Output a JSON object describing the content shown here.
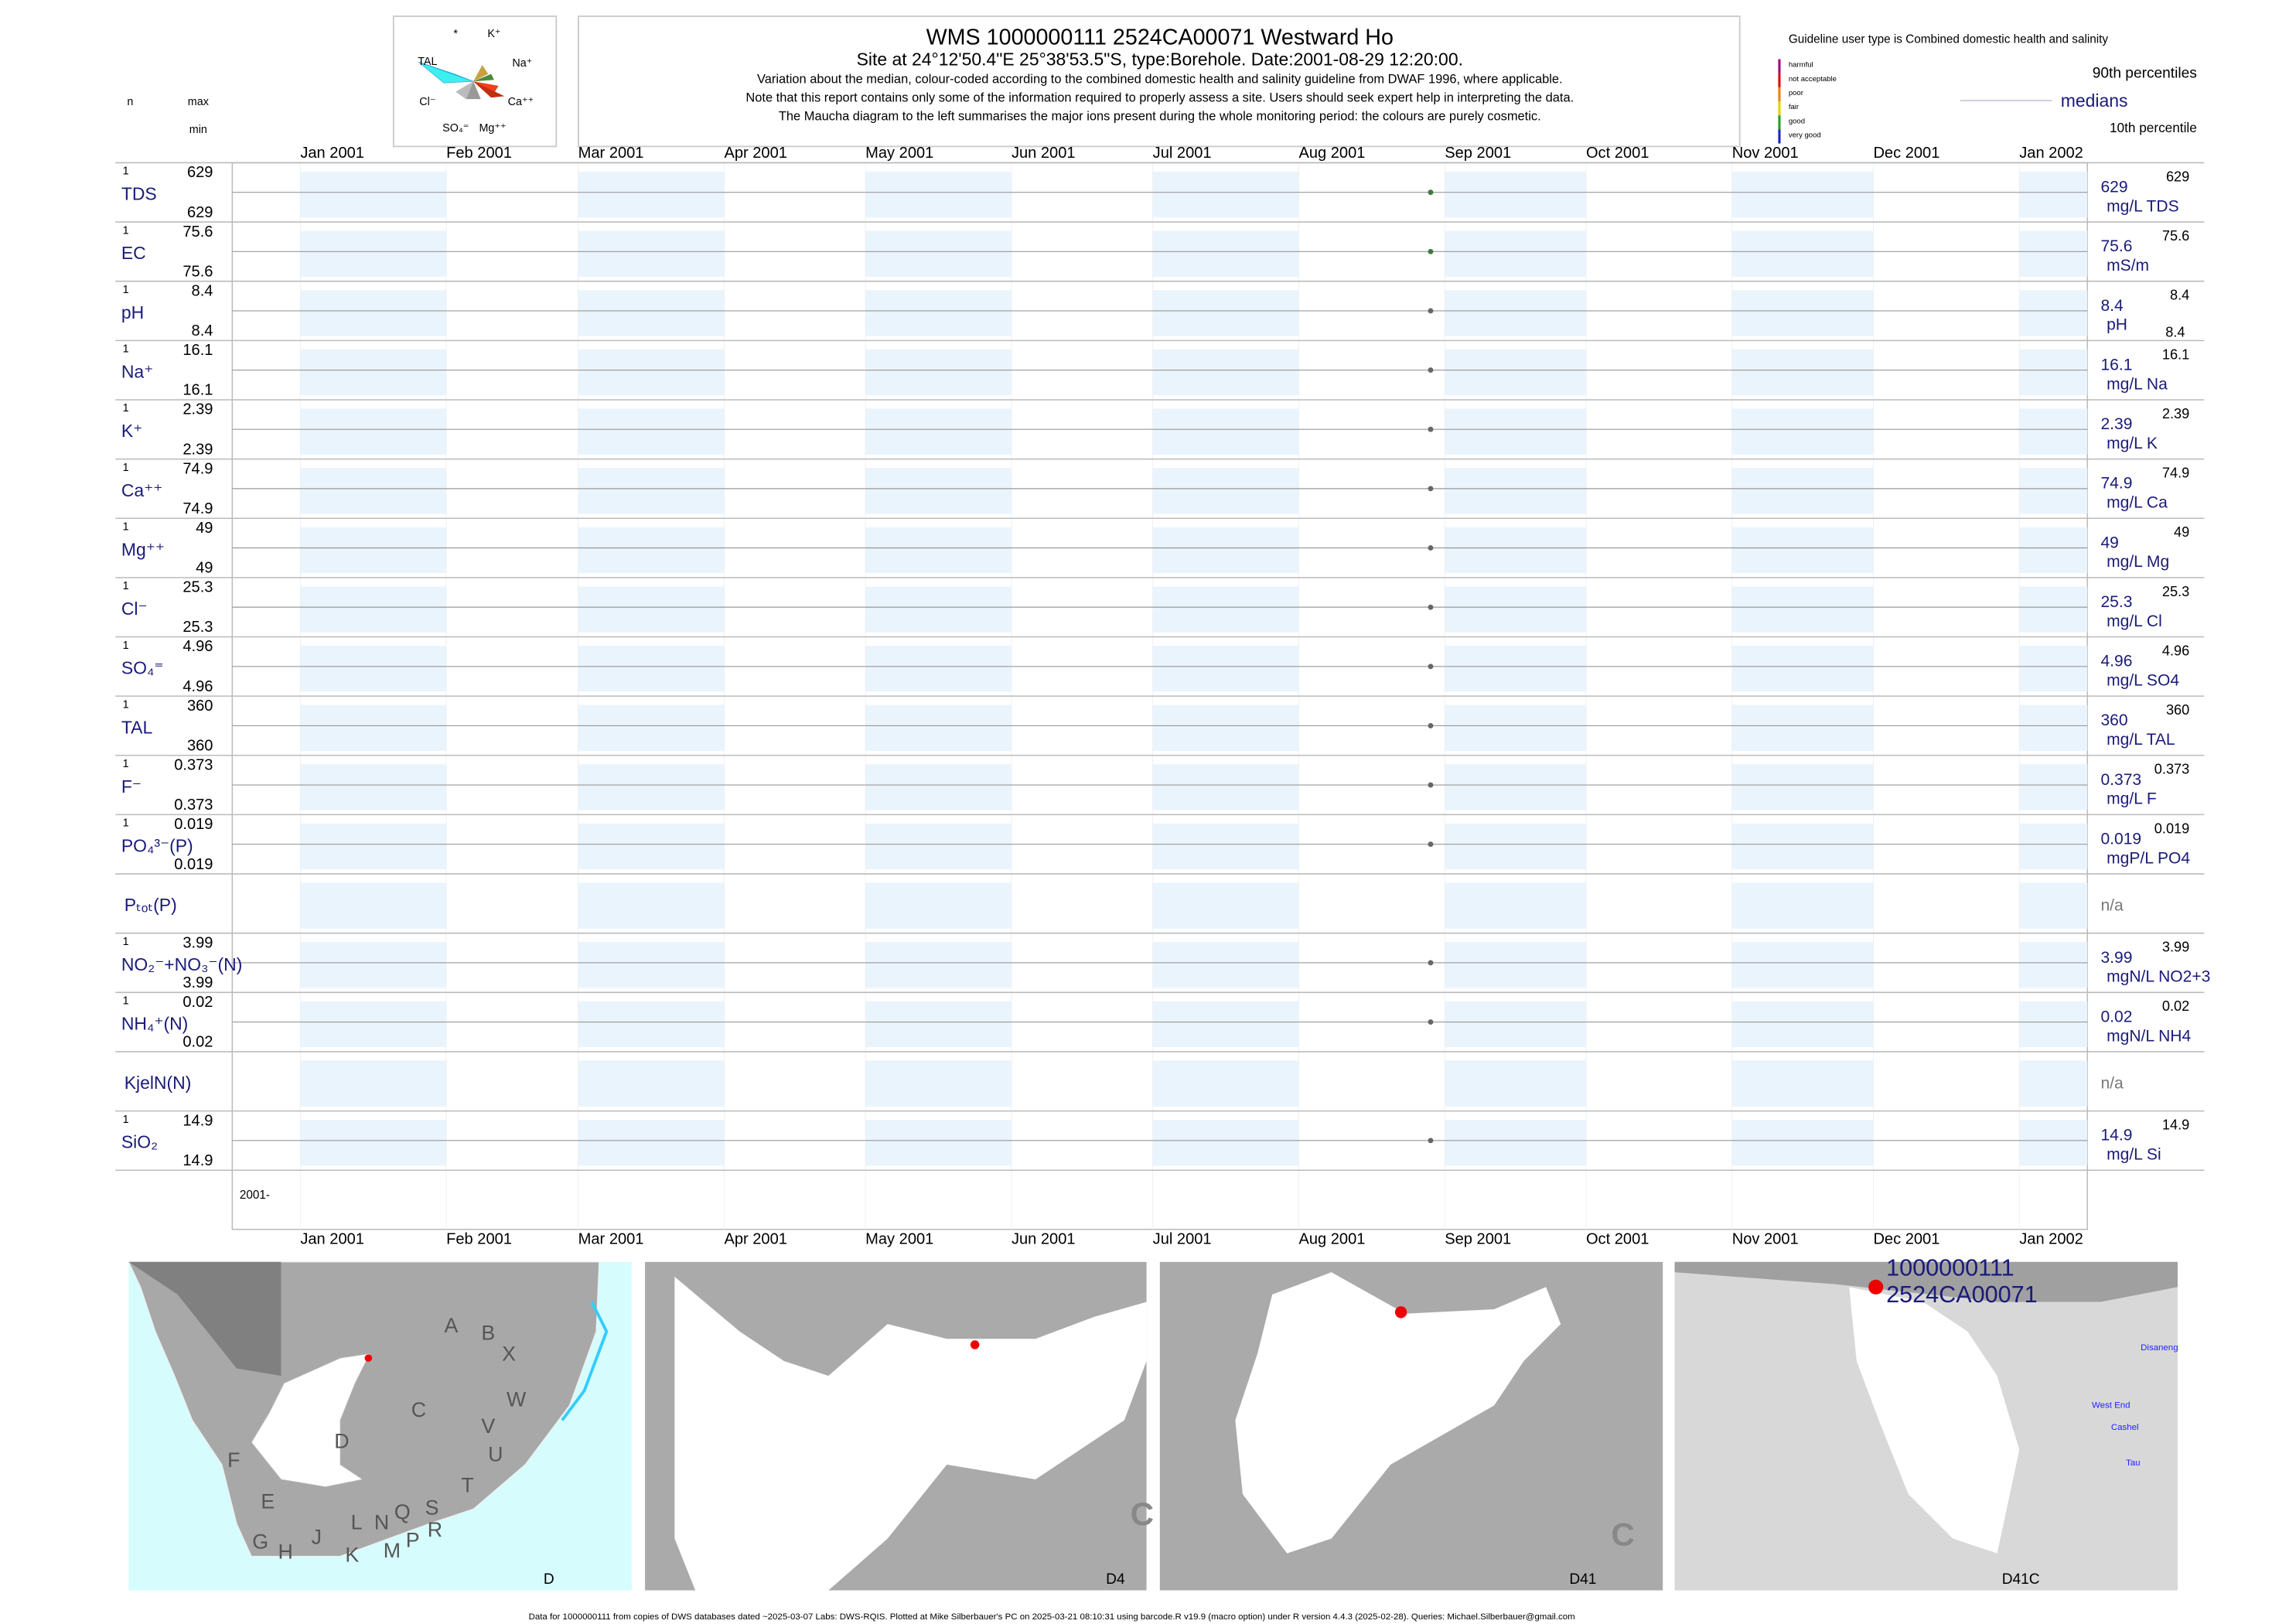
{
  "header": {
    "title": "WMS 1000000111 2524CA00071 Westward Ho",
    "subtitle": "Site at 24°12'50.4\"E 25°38'53.5\"S, type:Borehole. Date:2001-08-29 12:20:00.",
    "notes": [
      "Variation about the median,  colour-coded according to the combined domestic health and salinity guideline from DWAF 1996, where applicable.",
      "Note that this report contains only some of the information required to properly assess a site. Users should seek expert help in interpreting the data.",
      "The Maucha diagram to the left summarises the major ions present during the whole monitoring period: the colours are purely cosmetic."
    ]
  },
  "column_heads": {
    "n": "n",
    "max": "max",
    "min": "min"
  },
  "maucha": {
    "labels": [
      "*",
      "K⁺",
      "TAL",
      "Na⁺",
      "Cl⁻",
      "Ca⁺⁺",
      "SO₄⁼",
      "Mg⁺⁺"
    ]
  },
  "guideline": {
    "title": "Guideline user type is Combined domestic health and salinity",
    "classes": [
      {
        "name": "harmful",
        "color": "#a0007a"
      },
      {
        "name": "not acceptable",
        "color": "#e00000"
      },
      {
        "name": "poor",
        "color": "#f08000"
      },
      {
        "name": "fair",
        "color": "#e0d000"
      },
      {
        "name": "good",
        "color": "#20a020"
      },
      {
        "name": "very good",
        "color": "#2020c0"
      }
    ],
    "p90_label": "90th percentiles",
    "median_label": "medians",
    "p10_label": "10th percentile"
  },
  "months": [
    "Jan 2001",
    "Feb 2001",
    "Mar 2001",
    "Apr 2001",
    "May 2001",
    "Jun 2001",
    "Jul 2001",
    "Aug 2001",
    "Sep 2001",
    "Oct 2001",
    "Nov 2001",
    "Dec 2001",
    "Jan 2002"
  ],
  "year_label": "2001-",
  "rows": [
    {
      "label": "TDS",
      "n": 1,
      "max": 629,
      "min": 629,
      "median": 629,
      "unit": "mg/L TDS",
      "p90": 629,
      "color": "#3c7a3c"
    },
    {
      "label": "EC",
      "n": 1,
      "max": 75.6,
      "min": 75.6,
      "median": 75.6,
      "unit": "mS/m",
      "p90": 75.6,
      "color": "#3c7a3c"
    },
    {
      "label": "pH",
      "n": 1,
      "max": 8.4,
      "min": 8.4,
      "median": 8.4,
      "unit": "pH",
      "p90": 8.4,
      "p10": 8.4,
      "color": "#666666"
    },
    {
      "label": "Na⁺",
      "n": 1,
      "max": 16.1,
      "min": 16.1,
      "median": 16.1,
      "unit": "mg/L Na",
      "p90": 16.1,
      "color": "#666666"
    },
    {
      "label": "K⁺",
      "n": 1,
      "max": 2.39,
      "min": 2.39,
      "median": 2.39,
      "unit": "mg/L K",
      "p90": 2.39,
      "color": "#666666"
    },
    {
      "label": "Ca⁺⁺",
      "n": 1,
      "max": 74.9,
      "min": 74.9,
      "median": 74.9,
      "unit": "mg/L Ca",
      "p90": 74.9,
      "color": "#666666"
    },
    {
      "label": "Mg⁺⁺",
      "n": 1,
      "max": 49,
      "min": 49,
      "median": 49,
      "unit": "mg/L Mg",
      "p90": 49,
      "color": "#666666"
    },
    {
      "label": "Cl⁻",
      "n": 1,
      "max": 25.3,
      "min": 25.3,
      "median": 25.3,
      "unit": "mg/L Cl",
      "p90": 25.3,
      "color": "#666666"
    },
    {
      "label": "SO₄⁼",
      "n": 1,
      "max": 4.96,
      "min": 4.96,
      "median": 4.96,
      "unit": "mg/L SO4",
      "p90": 4.96,
      "color": "#666666"
    },
    {
      "label": "TAL",
      "n": 1,
      "max": 360,
      "min": 360,
      "median": 360,
      "unit": "mg/L TAL",
      "p90": 360,
      "color": "#666666"
    },
    {
      "label": "F⁻",
      "n": 1,
      "max": 0.373,
      "min": 0.373,
      "median": 0.373,
      "unit": "mg/L F",
      "p90": 0.373,
      "color": "#666666"
    },
    {
      "label": "PO₄³⁻(P)",
      "n": 1,
      "max": 0.019,
      "min": 0.019,
      "median": 0.019,
      "unit": "mgP/L PO4",
      "p90": 0.019,
      "color": "#666666"
    },
    {
      "label": "Pₜₒₜ(P)",
      "status": "n/a"
    },
    {
      "label": "NO₂⁻+NO₃⁻(N)",
      "n": 1,
      "max": 3.99,
      "min": 3.99,
      "median": 3.99,
      "unit": "mgN/L NO2+3",
      "p90": 3.99,
      "color": "#666666"
    },
    {
      "label": "NH₄⁺(N)",
      "n": 1,
      "max": 0.02,
      "min": 0.02,
      "median": 0.02,
      "unit": "mgN/L NH4",
      "p90": 0.02,
      "color": "#666666"
    },
    {
      "label": "KjelN(N)",
      "status": "n/a"
    },
    {
      "label": "SiO₂",
      "n": 1,
      "max": 14.9,
      "min": 14.9,
      "median": 14.9,
      "unit": "mg/L Si",
      "p90": 14.9,
      "color": "#666666"
    }
  ],
  "maps": [
    {
      "label": "D",
      "regions": [
        "A",
        "B",
        "X",
        "C",
        "W",
        "D",
        "V",
        "U",
        "F",
        "T",
        "E",
        "S",
        "Q",
        "N",
        "L",
        "R",
        "G",
        "H",
        "J",
        "P",
        "M",
        "K"
      ]
    },
    {
      "label": "D4",
      "regions": [
        "C"
      ]
    },
    {
      "label": "D41",
      "regions": [
        "C"
      ]
    },
    {
      "label": "D41C",
      "site": [
        "1000000111",
        "2524CA00071"
      ],
      "places": [
        "Disaneng",
        "West End",
        "Cashel",
        "Tau"
      ]
    }
  ],
  "footer": "Data for 1000000111 from copies of DWS databases dated ~2025-03-07 Labs: DWS-RQIS. Plotted at Mike Silberbauer's PC on 2025-03-21 08:10:31 using barcode.R v19.9 (macro option) under R version 4.4.3 (2025-02-28). Queries: Michael.Silberbauer@gmail.com"
}
